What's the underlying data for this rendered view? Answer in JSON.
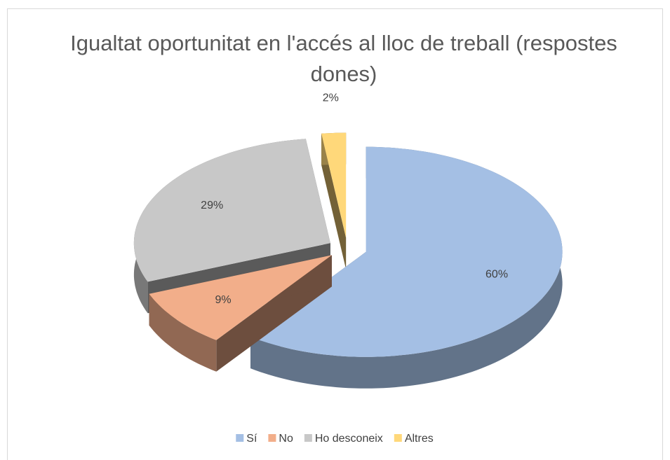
{
  "chart_data": {
    "type": "pie3d",
    "title": "Igualtat oportunitat en l'accés al lloc de treball (respostes dones)",
    "categories": [
      "Sí",
      "No",
      "Ho desconeix",
      "Altres"
    ],
    "values": [
      60,
      9,
      29,
      2
    ],
    "value_labels": [
      "60%",
      "9%",
      "29%",
      "2%"
    ],
    "colors": [
      "#a4bfe4",
      "#f2ae8a",
      "#c8c8c8",
      "#ffd87a"
    ],
    "legend": "bottom"
  }
}
